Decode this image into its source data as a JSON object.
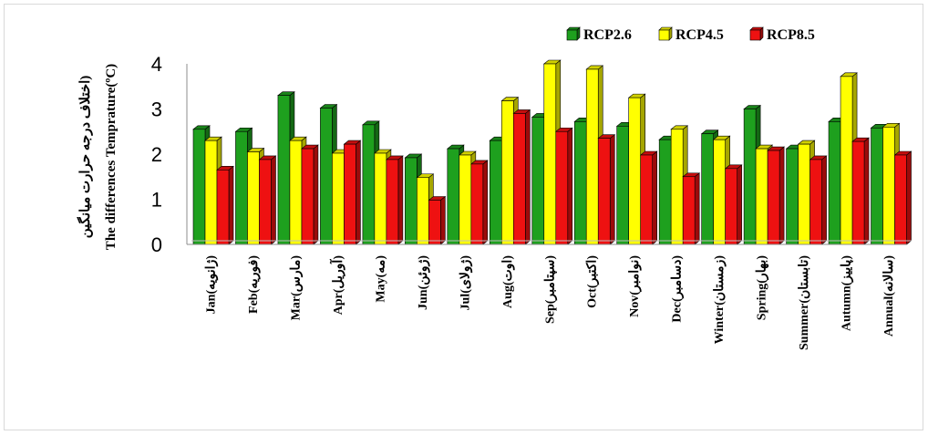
{
  "chart_data": {
    "type": "bar",
    "categories": [
      "Jan(ژانویه)",
      "Feb(فوریه)",
      "Mar(مارس)",
      "Apr(آوریل)",
      "May(مه)",
      "Jun(ژوئن)",
      "Jul(ژولای)",
      "Aug(اوت)",
      "Sep(سپتامبر)",
      "Oct(اکتبر)",
      "Nov(نوامبر)",
      "Dec(دسامبر)",
      "Winter(زمستان)",
      "Spring(بهار)",
      "Summer(تابستان)",
      "Autumn(پاییز)",
      "Annual(سالانه)"
    ],
    "series": [
      {
        "name": "RCP2.6",
        "color": "#1ea01e",
        "values": [
          2.55,
          2.5,
          3.3,
          3.02,
          2.65,
          1.92,
          2.12,
          2.3,
          2.82,
          2.72,
          2.62,
          2.32,
          2.45,
          3.0,
          2.12,
          2.72,
          2.58
        ]
      },
      {
        "name": "RCP4.5",
        "color": "#ffff00",
        "values": [
          2.3,
          2.05,
          2.3,
          2.02,
          2.02,
          1.48,
          1.98,
          3.18,
          4.0,
          3.88,
          3.25,
          2.55,
          2.32,
          2.12,
          2.22,
          3.72,
          2.6
        ]
      },
      {
        "name": "RCP8.5",
        "color": "#ee1111",
        "values": [
          1.65,
          1.88,
          2.12,
          2.22,
          1.88,
          0.98,
          1.78,
          2.9,
          2.5,
          2.35,
          1.98,
          1.5,
          1.68,
          2.08,
          1.88,
          2.28,
          1.98
        ]
      }
    ],
    "ylabel_fa": "اختلاف درجه حرارت میانگین)",
    "ylabel_en": "The differences Temprature(ºC)",
    "y_ticks": [
      "0",
      "1",
      "2",
      "3",
      "4"
    ],
    "ylim": [
      0,
      4
    ],
    "legend_position": "top-right",
    "grid": false
  }
}
